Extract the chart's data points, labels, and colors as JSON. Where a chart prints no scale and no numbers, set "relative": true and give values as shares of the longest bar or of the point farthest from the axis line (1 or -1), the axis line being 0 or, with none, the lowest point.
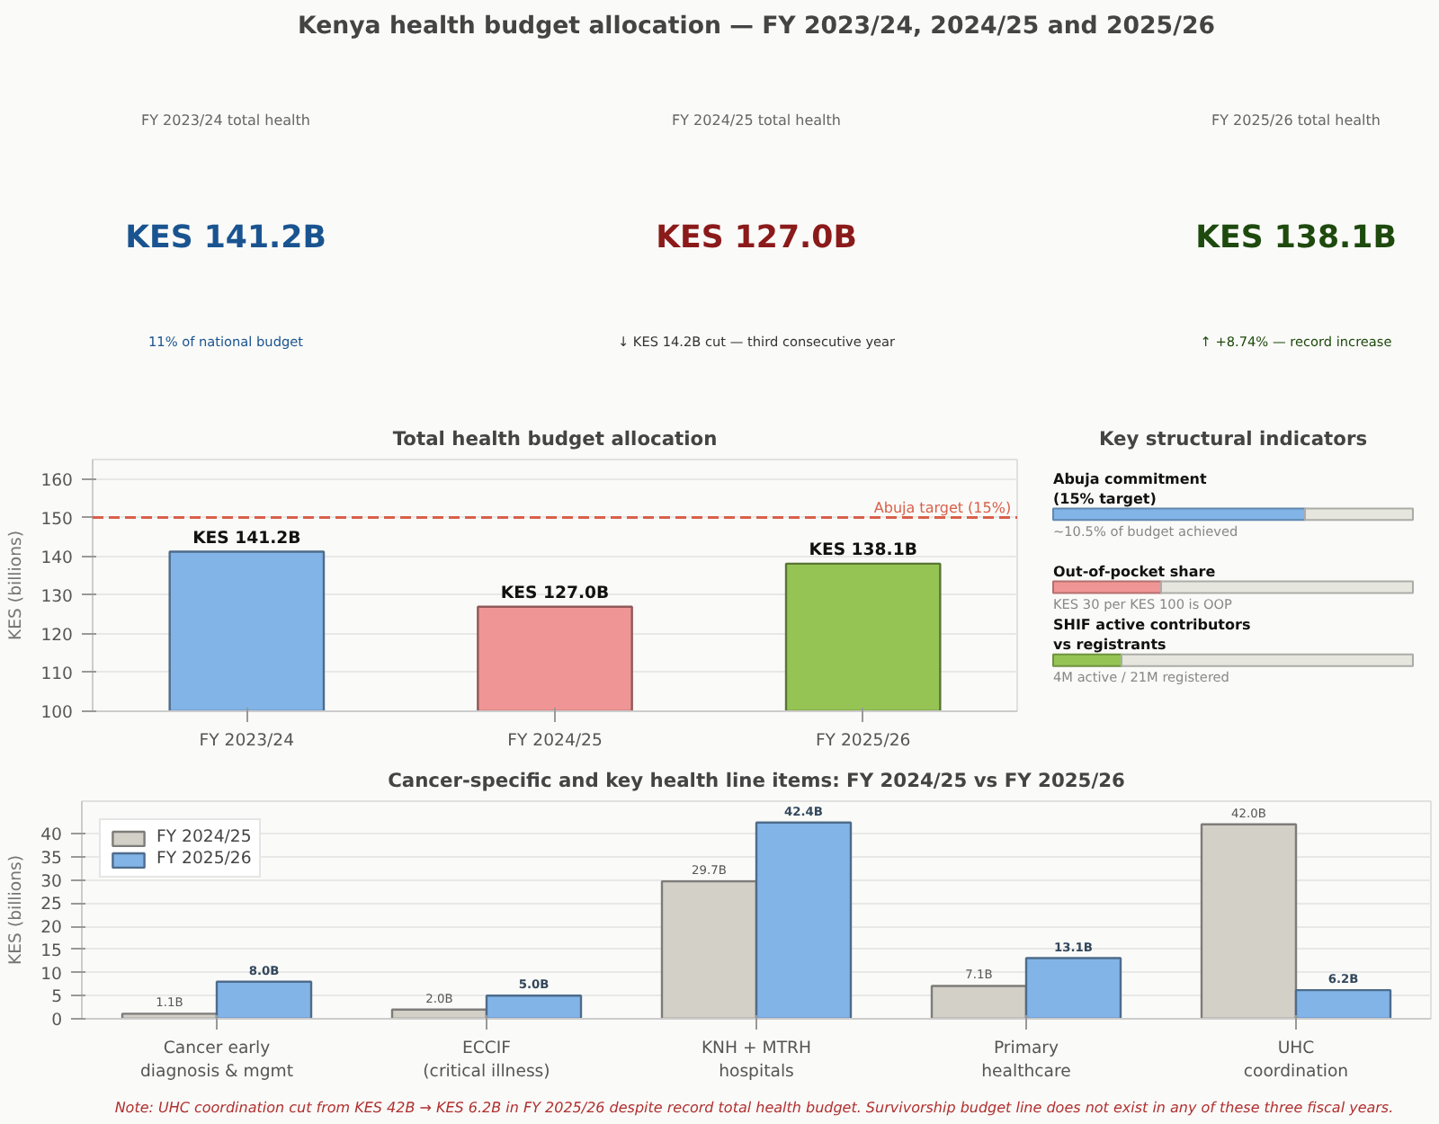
{
  "chart_data": [
    {
      "type": "other",
      "title": "Kenya health budget allocation — FY 2023/24, 2024/25 and 2025/26",
      "annotations": [
        "FY 2023/24 total health",
        "KES 141.2B",
        "11% of national budget",
        "FY 2024/25 total health",
        "KES 127.0B",
        "↓ KES 14.2B cut — third consecutive year",
        "FY 2025/26 total health",
        "KES 138.1B",
        "↑ +8.74% — record increase"
      ]
    },
    {
      "type": "bar",
      "title": "Total health budget allocation",
      "ylabel": "KES (billions)",
      "categories": [
        "FY 2023/24",
        "FY 2024/25",
        "FY 2025/26"
      ],
      "values": [
        141.2,
        127.0,
        138.1
      ],
      "colors": [
        "#82b4e8",
        "#f09595",
        "#95c455"
      ],
      "value_labels": [
        "KES 141.2B",
        "KES 127.0B",
        "KES 138.1B"
      ],
      "ylim": [
        100,
        165
      ],
      "yticks": [
        100,
        110,
        120,
        130,
        140,
        150,
        160
      ],
      "grid": "y",
      "ref_lines": [
        {
          "axis": "y",
          "value": 150,
          "label": "Abuja target (15%)",
          "color": "#d9604a",
          "line_style": "dashed"
        }
      ]
    },
    {
      "type": "bar",
      "title": "Key structural indicators",
      "orientation": "horizontal",
      "stacked": true,
      "relative": true,
      "categories": [
        "Abuja commitment\n(15% target)",
        "Out-of-pocket share",
        "SHIF active contributors\nvs registrants"
      ],
      "series": [
        {
          "colors": [
            "#82b4e8",
            "#f09595",
            "#95c455"
          ],
          "values": [
            0.7,
            0.3,
            0.19
          ]
        },
        {
          "color": "#e6e6df",
          "values": [
            0.3,
            0.7,
            0.81
          ]
        }
      ],
      "annotations": [
        "~10.5% of budget achieved",
        "KES 30 per KES 100 is OOP",
        "4M active / 21M registered"
      ]
    },
    {
      "type": "bar",
      "title": "Cancer-specific and key health line items: FY 2024/25 vs FY 2025/26",
      "ylabel": "KES (billions)",
      "categories": [
        "Cancer early\ndiagnosis & mgmt",
        "ECCIF\n(critical illness)",
        "KNH + MTRH\nhospitals",
        "Primary\nhealthcare",
        "UHC\ncoordination"
      ],
      "series": [
        {
          "name": "FY 2024/25",
          "color": "#d3d0c8",
          "values": [
            1.1,
            2.0,
            29.7,
            7.1,
            42.0
          ],
          "value_labels": [
            "1.1B",
            "2.0B",
            "29.7B",
            "7.1B",
            "42.0B"
          ]
        },
        {
          "name": "FY 2025/26",
          "color": "#82b4e8",
          "values": [
            8.0,
            5.0,
            42.4,
            13.1,
            6.2
          ],
          "value_labels": [
            "8.0B",
            "5.0B",
            "42.4B",
            "13.1B",
            "6.2B"
          ]
        }
      ],
      "ylim": [
        0,
        47
      ],
      "yticks": [
        0,
        5,
        10,
        15,
        20,
        25,
        30,
        35,
        40
      ],
      "grid": "y",
      "legend": "top left",
      "annotations": [
        "Note: UHC coordination cut from KES 42B → KES 6.2B in FY 2025/26 despite record total health budget.  Survivorship budget line does not exist in any of these three fiscal years."
      ]
    }
  ]
}
